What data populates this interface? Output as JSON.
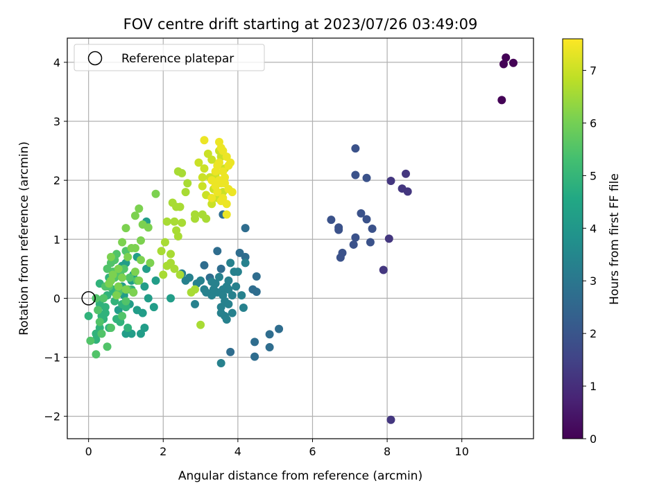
{
  "chart_data": {
    "type": "scatter",
    "title": "FOV centre drift starting at 2023/07/26 03:49:09",
    "xlabel": "Angular distance from reference (arcmin)",
    "ylabel": "Rotation from reference (arcmin)",
    "xlim": [
      -0.57,
      11.92
    ],
    "ylim": [
      -2.38,
      4.41
    ],
    "xticks": [
      0,
      2,
      4,
      6,
      8,
      10
    ],
    "yticks": [
      -2,
      -1,
      0,
      1,
      2,
      3,
      4
    ],
    "grid": true,
    "legend": {
      "placement": "upper-left",
      "entries": [
        "Reference platepar"
      ]
    },
    "reference_point": {
      "x": 0,
      "y": 0,
      "label": "Reference platepar"
    },
    "colorbar": {
      "label": "Hours from first FF file",
      "range": [
        0,
        7.6
      ],
      "ticks": [
        0,
        1,
        2,
        3,
        4,
        5,
        6,
        7
      ],
      "colormap": "viridis"
    },
    "groups": [
      {
        "hours": 0.05,
        "points": [
          [
            11.18,
            4.08
          ],
          [
            11.12,
            3.97
          ],
          [
            11.38,
            3.99
          ],
          [
            11.07,
            3.36
          ]
        ]
      },
      {
        "hours": 1.2,
        "points": [
          [
            8.1,
            1.99
          ],
          [
            8.5,
            2.11
          ],
          [
            8.4,
            1.86
          ],
          [
            8.55,
            1.81
          ],
          [
            8.05,
            1.01
          ],
          [
            7.9,
            0.48
          ],
          [
            8.1,
            -2.06
          ]
        ]
      },
      {
        "hours": 1.9,
        "points": [
          [
            7.15,
            2.54
          ],
          [
            7.15,
            2.09
          ],
          [
            7.45,
            2.04
          ],
          [
            6.5,
            1.33
          ],
          [
            6.7,
            1.2
          ],
          [
            6.7,
            1.16
          ],
          [
            7.3,
            1.44
          ],
          [
            7.45,
            1.34
          ],
          [
            7.6,
            1.18
          ],
          [
            7.15,
            1.03
          ],
          [
            7.55,
            0.95
          ],
          [
            7.1,
            0.91
          ],
          [
            6.8,
            0.77
          ],
          [
            6.75,
            0.69
          ]
        ]
      },
      {
        "hours": 2.7,
        "points": [
          [
            4.2,
            1.19
          ],
          [
            4.45,
            -0.74
          ],
          [
            4.45,
            -0.99
          ],
          [
            4.85,
            -0.61
          ],
          [
            4.85,
            -0.83
          ],
          [
            5.1,
            -0.52
          ],
          [
            3.8,
            -0.91
          ],
          [
            4.05,
            0.77
          ],
          [
            4.2,
            0.7
          ],
          [
            3.45,
            0.8
          ],
          [
            3.55,
            0.5
          ],
          [
            3.1,
            0.56
          ],
          [
            3.25,
            0.35
          ],
          [
            4.5,
            0.37
          ],
          [
            4.4,
            0.15
          ],
          [
            4.5,
            0.11
          ],
          [
            3.6,
            1.42
          ]
        ]
      },
      {
        "hours": 3.3,
        "points": [
          [
            3.55,
            -1.1
          ],
          [
            3.85,
            0.05
          ],
          [
            4.15,
            -0.16
          ],
          [
            3.65,
            -0.3
          ],
          [
            3.7,
            -0.36
          ],
          [
            3.6,
            0.15
          ],
          [
            3.75,
            0.3
          ],
          [
            3.9,
            0.45
          ],
          [
            3.5,
            0.36
          ],
          [
            3.3,
            0.28
          ],
          [
            3.0,
            0.3
          ],
          [
            2.85,
            -0.1
          ],
          [
            3.1,
            0.15
          ],
          [
            3.45,
            0.1
          ],
          [
            3.75,
            -0.1
          ],
          [
            2.6,
            0.3
          ],
          [
            2.5,
            0.42
          ],
          [
            4.0,
            0.45
          ],
          [
            4.2,
            0.6
          ],
          [
            3.8,
            0.6
          ],
          [
            3.3,
            0.05
          ],
          [
            3.55,
            -0.15
          ],
          [
            3.65,
            -0.05
          ],
          [
            3.85,
            -0.25
          ],
          [
            3.7,
            0.2
          ],
          [
            3.35,
            0.15
          ],
          [
            3.15,
            0.1
          ],
          [
            4.1,
            0.05
          ],
          [
            3.6,
            0.05
          ],
          [
            3.55,
            -0.25
          ],
          [
            2.9,
            0.25
          ],
          [
            2.7,
            0.35
          ],
          [
            3.95,
            0.2
          ],
          [
            3.4,
            0.25
          ],
          [
            3.75,
            0.15
          ]
        ]
      },
      {
        "hours": 4.2,
        "points": [
          [
            0.7,
            0.45
          ],
          [
            1.0,
            0.6
          ],
          [
            1.3,
            0.7
          ],
          [
            1.55,
            0.5
          ],
          [
            1.8,
            0.3
          ],
          [
            2.2,
            0.0
          ],
          [
            1.5,
            0.2
          ],
          [
            1.2,
            0.1
          ],
          [
            1.5,
            -0.5
          ],
          [
            1.4,
            -0.6
          ],
          [
            1.0,
            -0.6
          ],
          [
            1.15,
            -0.6
          ],
          [
            0.8,
            -0.2
          ],
          [
            1.1,
            -0.1
          ],
          [
            1.55,
            1.3
          ],
          [
            1.2,
            0.4
          ],
          [
            0.9,
            0.2
          ],
          [
            1.6,
            0.0
          ],
          [
            1.3,
            -0.2
          ],
          [
            1.15,
            0.3
          ],
          [
            1.45,
            -0.25
          ],
          [
            1.75,
            -0.15
          ],
          [
            0.9,
            0.55
          ],
          [
            0.95,
            0.05
          ]
        ]
      },
      {
        "hours": 4.9,
        "points": [
          [
            0.0,
            -0.3
          ],
          [
            0.3,
            -0.5
          ],
          [
            0.2,
            -0.7
          ],
          [
            0.45,
            -0.15
          ],
          [
            0.55,
            -0.5
          ],
          [
            0.85,
            -0.4
          ],
          [
            1.05,
            -0.5
          ],
          [
            0.35,
            -0.3
          ],
          [
            0.5,
            0.05
          ],
          [
            0.7,
            -0.05
          ],
          [
            0.9,
            -0.1
          ],
          [
            1.15,
            0.15
          ],
          [
            0.3,
            0.25
          ],
          [
            0.55,
            0.35
          ],
          [
            0.7,
            0.1
          ],
          [
            0.2,
            -0.6
          ],
          [
            0.4,
            -0.35
          ],
          [
            0.6,
            0.3
          ],
          [
            0.3,
            -0.1
          ],
          [
            0.75,
            -0.35
          ],
          [
            1.0,
            -0.15
          ],
          [
            0.65,
            0.15
          ],
          [
            0.45,
            -0.25
          ]
        ]
      },
      {
        "hours": 5.5,
        "points": [
          [
            0.2,
            -0.95
          ],
          [
            0.5,
            -0.82
          ],
          [
            0.05,
            -0.72
          ],
          [
            0.35,
            -0.6
          ],
          [
            0.25,
            -0.2
          ],
          [
            0.2,
            0.0
          ],
          [
            0.4,
            0.0
          ],
          [
            0.6,
            -0.5
          ],
          [
            0.9,
            -0.3
          ],
          [
            1.0,
            -0.05
          ],
          [
            0.8,
            0.1
          ],
          [
            0.6,
            0.6
          ],
          [
            0.75,
            0.75
          ],
          [
            1.0,
            0.8
          ],
          [
            0.5,
            0.5
          ],
          [
            0.7,
            0.65
          ],
          [
            1.1,
            0.35
          ],
          [
            0.95,
            0.5
          ],
          [
            0.55,
            0.2
          ],
          [
            0.85,
            0.4
          ],
          [
            0.3,
            -0.4
          ],
          [
            0.65,
            0.45
          ],
          [
            1.3,
            0.3
          ],
          [
            0.45,
            0.2
          ],
          [
            1.05,
            0.15
          ],
          [
            0.7,
            0.35
          ]
        ]
      },
      {
        "hours": 6.1,
        "points": [
          [
            1.8,
            1.77
          ],
          [
            1.35,
            1.52
          ],
          [
            1.25,
            1.4
          ],
          [
            1.45,
            1.25
          ],
          [
            1.6,
            1.2
          ],
          [
            1.0,
            1.19
          ],
          [
            1.4,
            0.98
          ],
          [
            1.15,
            0.85
          ],
          [
            1.25,
            0.85
          ],
          [
            0.9,
            0.95
          ],
          [
            1.05,
            0.7
          ],
          [
            1.4,
            0.65
          ],
          [
            1.65,
            0.6
          ],
          [
            0.6,
            0.7
          ],
          [
            0.8,
            0.5
          ],
          [
            0.65,
            0.4
          ],
          [
            0.55,
            0.25
          ],
          [
            0.8,
            0.2
          ],
          [
            1.0,
            0.15
          ],
          [
            1.35,
            0.3
          ],
          [
            1.2,
            0.1
          ],
          [
            0.75,
            0.05
          ],
          [
            0.6,
            0.3
          ],
          [
            0.9,
            0.35
          ],
          [
            1.25,
            0.45
          ]
        ]
      },
      {
        "hours": 6.6,
        "points": [
          [
            2.25,
            1.62
          ],
          [
            2.35,
            1.55
          ],
          [
            2.45,
            1.55
          ],
          [
            2.1,
            1.3
          ],
          [
            2.3,
            1.3
          ],
          [
            2.5,
            1.28
          ],
          [
            2.35,
            1.15
          ],
          [
            2.4,
            1.05
          ],
          [
            2.05,
            0.95
          ],
          [
            1.95,
            0.8
          ],
          [
            2.2,
            0.75
          ],
          [
            2.1,
            0.55
          ],
          [
            2.3,
            0.5
          ],
          [
            2.45,
            0.4
          ],
          [
            2.0,
            0.4
          ],
          [
            2.6,
            1.8
          ],
          [
            2.4,
            2.15
          ],
          [
            2.5,
            2.12
          ],
          [
            2.65,
            1.95
          ],
          [
            2.85,
            1.42
          ],
          [
            3.05,
            1.42
          ],
          [
            3.15,
            1.35
          ],
          [
            2.85,
            1.35
          ],
          [
            3.0,
            -0.45
          ],
          [
            2.75,
            0.1
          ],
          [
            2.85,
            0.15
          ],
          [
            2.2,
            0.6
          ]
        ]
      },
      {
        "hours": 7.0,
        "points": [
          [
            2.95,
            2.3
          ],
          [
            3.1,
            2.2
          ],
          [
            3.3,
            2.35
          ],
          [
            3.5,
            2.5
          ],
          [
            3.25,
            2.05
          ],
          [
            3.05,
            1.9
          ],
          [
            3.15,
            1.75
          ],
          [
            3.3,
            1.6
          ],
          [
            3.45,
            1.7
          ],
          [
            3.6,
            1.8
          ],
          [
            3.4,
            2.1
          ],
          [
            3.2,
            2.45
          ],
          [
            3.55,
            2.4
          ],
          [
            3.65,
            2.2
          ],
          [
            3.05,
            2.05
          ],
          [
            3.35,
            1.85
          ]
        ]
      },
      {
        "hours": 7.4,
        "points": [
          [
            3.1,
            2.68
          ],
          [
            3.5,
            2.65
          ],
          [
            3.6,
            2.5
          ],
          [
            3.7,
            2.4
          ],
          [
            3.75,
            2.25
          ],
          [
            3.5,
            2.3
          ],
          [
            3.4,
            2.15
          ],
          [
            3.65,
            2.05
          ],
          [
            3.55,
            1.95
          ],
          [
            3.45,
            1.8
          ],
          [
            3.6,
            1.7
          ],
          [
            3.7,
            1.6
          ],
          [
            3.55,
            1.65
          ],
          [
            3.4,
            1.9
          ],
          [
            3.3,
            2.0
          ],
          [
            3.75,
            1.85
          ],
          [
            3.85,
            1.8
          ],
          [
            3.7,
            1.42
          ],
          [
            3.5,
            2.0
          ],
          [
            3.6,
            2.15
          ],
          [
            3.45,
            2.25
          ],
          [
            3.65,
            1.95
          ],
          [
            3.3,
            1.7
          ],
          [
            3.8,
            2.3
          ],
          [
            3.55,
            2.55
          ]
        ]
      }
    ]
  }
}
